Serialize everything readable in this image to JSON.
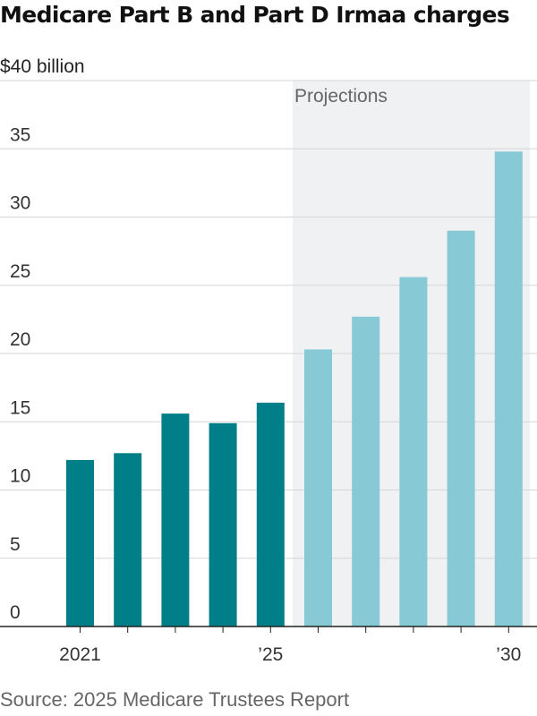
{
  "chart_data": {
    "type": "bar",
    "title": "Medicare Part B and Part D Irmaa charges",
    "unit_label": "$40 billion",
    "ylim": [
      0,
      40
    ],
    "yticks": [
      0,
      5,
      10,
      15,
      20,
      25,
      30,
      35
    ],
    "years": [
      2021,
      2022,
      2023,
      2024,
      2025,
      2026,
      2027,
      2028,
      2029,
      2030
    ],
    "values": [
      12.2,
      12.7,
      15.6,
      14.9,
      16.4,
      20.3,
      22.7,
      25.6,
      29.0,
      34.8
    ],
    "projected": [
      false,
      false,
      false,
      false,
      false,
      true,
      true,
      true,
      true,
      true
    ],
    "x_tick_labels": [
      {
        "year": 2021,
        "label": "2021"
      },
      {
        "year": 2025,
        "label": "’25"
      },
      {
        "year": 2030,
        "label": "’30"
      }
    ],
    "projection_label": "Projections",
    "grid": true,
    "colors": {
      "actual": "#007f89",
      "projected": "#88c9d6",
      "projection_band": "#eff1f3",
      "grid": "#d6d6d6",
      "axis": "#222222"
    }
  },
  "source": "Source: 2025 Medicare Trustees Report"
}
